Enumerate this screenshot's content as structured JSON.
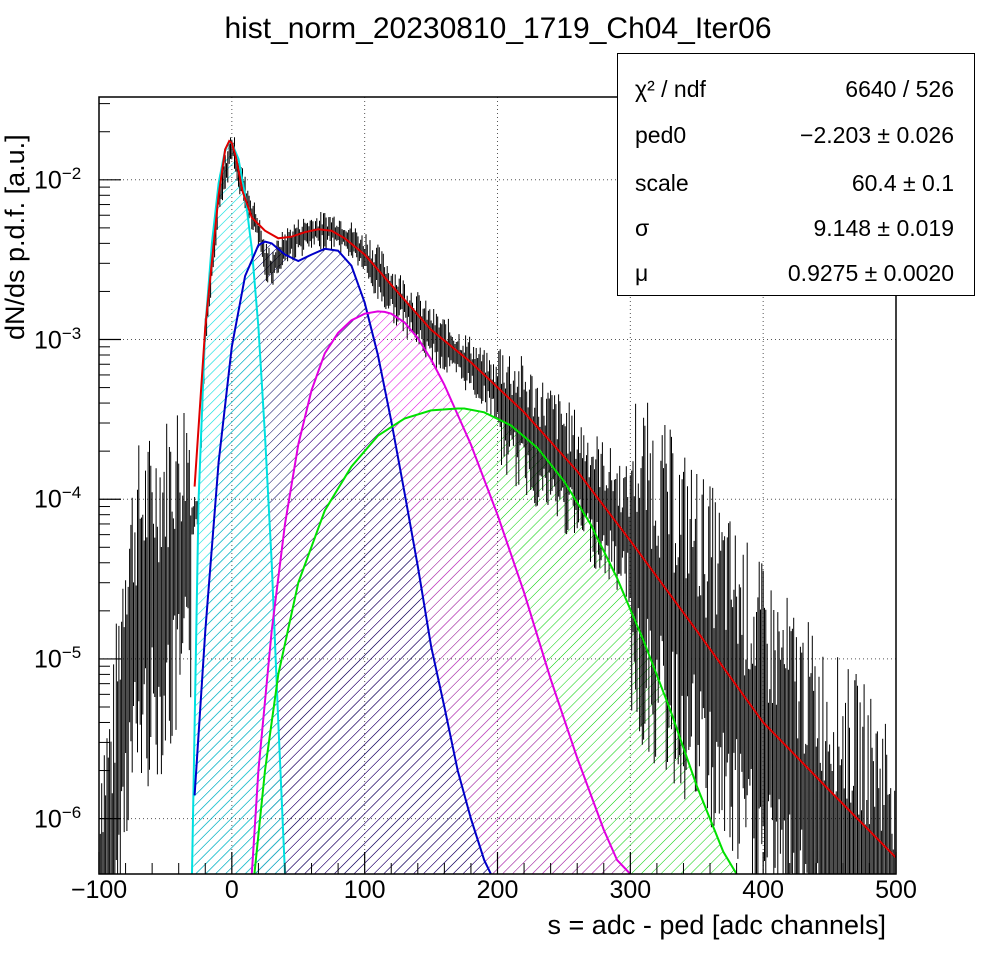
{
  "chart_data": {
    "type": "histogram_fit",
    "title": "hist_norm_20230810_1719_Ch04_Iter06",
    "xlabel": "s = adc - ped [adc channels]",
    "ylabel": "dN/ds p.d.f. [a.u.]",
    "xlim": [
      -100,
      500
    ],
    "ylim": [
      4.5e-07,
      0.033
    ],
    "yscale": "log",
    "grid": true,
    "x_ticks": [
      "−100",
      "0",
      "100",
      "200",
      "300",
      "400",
      "500"
    ],
    "y_ticks": [
      {
        "base": "10",
        "exp": "−2",
        "value": 0.01
      },
      {
        "base": "10",
        "exp": "−3",
        "value": 0.001
      },
      {
        "base": "10",
        "exp": "−4",
        "value": 0.0001
      },
      {
        "base": "10",
        "exp": "−5",
        "value": 1e-05
      },
      {
        "base": "10",
        "exp": "−6",
        "value": 1e-06
      }
    ],
    "stats": [
      {
        "key": "χ² / ndf",
        "value": "6640 / 526"
      },
      {
        "key": "ped0",
        "value": "−2.203 ± 0.026"
      },
      {
        "key": "scale",
        "value": "60.4 ± 0.1"
      },
      {
        "key": "σ",
        "value": "9.148 ± 0.019"
      },
      {
        "key": "μ",
        "value": "0.9275 ± 0.0020"
      }
    ],
    "total_fit": {
      "color": "#e00000",
      "x": [
        -28,
        -20,
        -10,
        -5,
        -2,
        0,
        3,
        8,
        15,
        25,
        35,
        45,
        55,
        65,
        75,
        85,
        100,
        120,
        150,
        180,
        220,
        260,
        300,
        350,
        400,
        450,
        500
      ],
      "y": [
        0.00012,
        0.0012,
        0.008,
        0.0155,
        0.0175,
        0.017,
        0.014,
        0.0085,
        0.0058,
        0.0048,
        0.0043,
        0.0044,
        0.0047,
        0.0049,
        0.0048,
        0.0043,
        0.0034,
        0.0022,
        0.00115,
        0.00072,
        0.00035,
        0.00015,
        5.5e-05,
        1.5e-05,
        4e-06,
        1.5e-06,
        5.7e-07
      ]
    },
    "data_histogram": {
      "color": "#000000",
      "x": [
        -100,
        -90,
        -85,
        -80,
        -70,
        -60,
        -50,
        -40,
        -30,
        -25,
        -20,
        -10,
        0,
        10,
        20,
        25,
        30,
        40,
        50,
        60,
        70,
        80,
        90,
        100,
        120,
        150,
        180,
        200,
        250,
        300,
        350,
        400,
        450,
        500
      ],
      "y": [
        6e-07,
        1e-06,
        4e-06,
        1.5e-05,
        3e-05,
        3.5e-05,
        4.5e-05,
        6e-05,
        8e-05,
        0.0001,
        0.0012,
        0.008,
        0.017,
        0.0085,
        0.005,
        0.0033,
        0.003,
        0.004,
        0.0046,
        0.0049,
        0.0051,
        0.005,
        0.0044,
        0.0036,
        0.0022,
        0.00115,
        0.00075,
        0.0005,
        0.0002,
        7e-05,
        2.2e-05,
        5e-06,
        1.5e-06,
        6e-07
      ]
    },
    "components": [
      {
        "color": "#00e0e0",
        "x": [
          -30,
          -25,
          -20,
          -15,
          -10,
          -5,
          -2,
          0,
          5,
          10,
          15,
          20,
          25,
          30,
          35,
          40
        ],
        "y": [
          4.5e-07,
          0.0001,
          0.0012,
          0.004,
          0.0095,
          0.0155,
          0.0172,
          0.017,
          0.0135,
          0.008,
          0.0037,
          0.0012,
          0.00025,
          4e-05,
          4e-06,
          4.5e-07
        ]
      },
      {
        "color": "#0000c8",
        "x": [
          -28,
          -20,
          -10,
          0,
          10,
          20,
          25,
          30,
          40,
          50,
          60,
          70,
          80,
          90,
          100,
          110,
          120,
          130,
          140,
          150,
          160,
          170,
          180,
          190,
          195
        ],
        "y": [
          1.4e-06,
          1.5e-05,
          0.00017,
          0.0009,
          0.0025,
          0.0039,
          0.0041,
          0.004,
          0.0034,
          0.0031,
          0.0034,
          0.0037,
          0.0036,
          0.0029,
          0.0017,
          0.0008,
          0.00031,
          0.00011,
          3.8e-05,
          1.2e-05,
          5e-06,
          2e-06,
          1e-06,
          5.5e-07,
          4.5e-07
        ]
      },
      {
        "color": "#e000e0",
        "x": [
          15,
          20,
          30,
          40,
          50,
          60,
          70,
          80,
          90,
          100,
          110,
          115,
          120,
          130,
          140,
          150,
          160,
          180,
          200,
          220,
          240,
          260,
          280,
          290,
          300
        ],
        "y": [
          4.5e-07,
          2e-06,
          1.5e-05,
          7e-05,
          0.00022,
          0.00048,
          0.00082,
          0.0011,
          0.00132,
          0.00145,
          0.0015,
          0.00149,
          0.00145,
          0.00128,
          0.00102,
          0.00075,
          0.00052,
          0.00022,
          8e-05,
          2.6e-05,
          7.5e-06,
          2.4e-06,
          8.5e-07,
          5.5e-07,
          4.5e-07
        ]
      },
      {
        "color": "#00e000",
        "x": [
          17,
          25,
          35,
          50,
          70,
          90,
          110,
          130,
          150,
          170,
          175,
          190,
          210,
          230,
          250,
          270,
          290,
          310,
          330,
          350,
          370,
          380
        ],
        "y": [
          4.5e-07,
          2e-06,
          8e-06,
          3e-05,
          8.5e-05,
          0.00016,
          0.00025,
          0.00032,
          0.00036,
          0.00037,
          0.00037,
          0.00035,
          0.00029,
          0.00021,
          0.00013,
          7e-05,
          3.2e-05,
          1.3e-05,
          4.8e-06,
          1.6e-06,
          6.2e-07,
          4.5e-07
        ]
      }
    ]
  }
}
